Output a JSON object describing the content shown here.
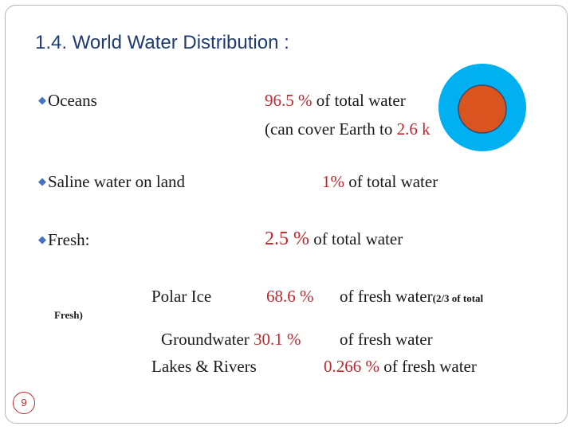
{
  "title": "1.4. World Water Distribution :",
  "oceans": {
    "label": "Oceans",
    "percent": "96.5 %",
    "suffix": " of total water",
    "cover_prefix": "(can cover Earth to ",
    "cover_value": "2.6 k"
  },
  "saline": {
    "label": "Saline water on land",
    "percent": "1%",
    "suffix": "  of total water"
  },
  "fresh": {
    "label": "Fresh:",
    "percent": "2.5 %",
    "suffix": " of total water"
  },
  "polar_ice": {
    "label": "Polar Ice",
    "percent": "68.6 %",
    "suffix": "of fresh water",
    "note": "(2/3 of total",
    "note_cont": "Fresh)"
  },
  "groundwater": {
    "label": "Groundwater ",
    "percent": "30.1 %",
    "suffix": "of fresh water"
  },
  "lakes": {
    "label": "Lakes & Rivers",
    "percent": "0.266 %",
    "suffix": " of fresh water"
  },
  "colors": {
    "ocean_blue": "#00b0f0",
    "land_orange": "#d9541e",
    "accent_red": "#c0272d",
    "title_blue": "#1f3b73"
  },
  "page_number": "9"
}
